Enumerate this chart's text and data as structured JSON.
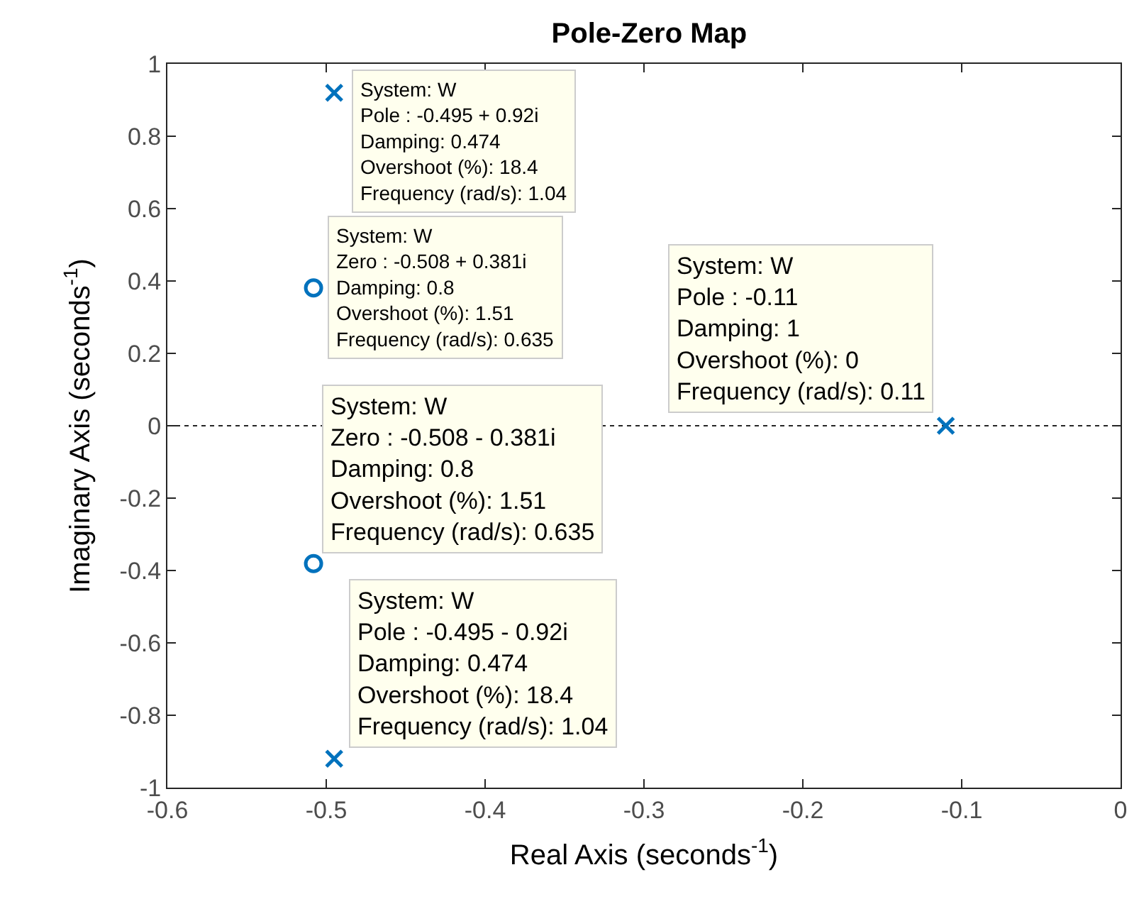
{
  "chart_data": {
    "type": "scatter",
    "title": "Pole-Zero Map",
    "xlabel": "Real Axis (seconds$^{-1}$)",
    "ylabel": "Imaginary Axis (seconds$^{-1}$)",
    "series": [
      {
        "color": "#0072bd",
        "marker": "cross",
        "x": [
          -0.495,
          -0.495,
          -0.11
        ],
        "values": [
          0.92,
          -0.92,
          0
        ]
      },
      {
        "color": "#0072bd",
        "marker": "circle",
        "x": [
          -0.508,
          -0.508
        ],
        "values": [
          0.381,
          -0.381
        ]
      }
    ],
    "xlim": [
      -0.6,
      0
    ],
    "xticks": [
      -0.6,
      -0.5,
      -0.4,
      -0.3,
      -0.2,
      -0.1,
      0
    ],
    "ylim": [
      -1,
      1
    ],
    "yticks": [
      -1,
      -0.8,
      -0.6,
      -0.4,
      -0.2,
      0,
      0.2,
      0.4,
      0.6,
      0.8,
      1
    ],
    "ref_lines": [
      {
        "axis": "y",
        "value": 0,
        "color": "#262626",
        "line_style": "dotted"
      }
    ],
    "grid": false,
    "annotations": [
      {
        "text": "System: W\nZero : -0.508 + 0.381i\nDamping: 0.8\nOvershoot (%): 1.51\nFrequency (rad/s): 0.635",
        "x": -0.508,
        "y": 0.381
      },
      {
        "text": "System: W\nPole : -0.495 + 0.92i\nDamping: 0.474\nOvershoot (%): 18.4\nFrequency (rad/s): 1.04",
        "x": -0.495,
        "y": 0.92
      },
      {
        "text": "System: W\nPole : -0.11\nDamping: 1\nOvershoot (%): 0\nFrequency (rad/s): 0.11",
        "x": -0.11,
        "y": 0
      },
      {
        "text": "System: W\nZero : -0.508 - 0.381i\nDamping: 0.8\nOvershoot (%): 1.51\nFrequency (rad/s): 0.635",
        "x": -0.508,
        "y": -0.381
      },
      {
        "text": "System: W\nPole : -0.495 - 0.92i\nDamping: 0.474\nOvershoot (%): 18.4\nFrequency (rad/s): 1.04",
        "x": -0.495,
        "y": -0.92
      }
    ]
  }
}
